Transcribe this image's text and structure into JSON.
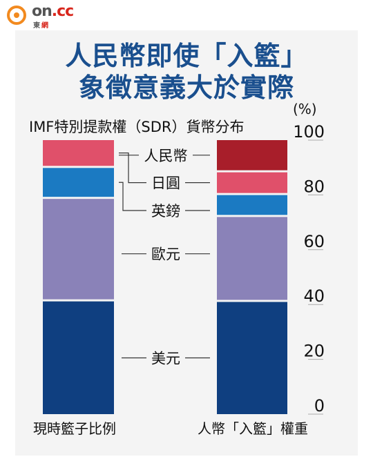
{
  "logo": {
    "brand_main": "on",
    "brand_suffix": ".cc",
    "brand_sub_1": "東",
    "brand_sub_2": "網"
  },
  "title_line1": "人民幣即使「入籃」",
  "title_line2": "象徵意義大於實際",
  "colors": {
    "title": "#1a4f8e",
    "美元": "#0f3f80",
    "歐元": "#8a82b8",
    "英鎊": "#1b7ac2",
    "日圓": "#e0506a",
    "人民幣": "#a81e2a"
  },
  "chart_data": {
    "type": "bar",
    "stacked": true,
    "title": "IMF特別提款權（SDR）貨幣分布",
    "unit": "(%)",
    "categories": [
      "現時籃子比例",
      "人幣「入籃」權重"
    ],
    "series": [
      {
        "name": "美元",
        "values": [
          41.9,
          41.7
        ]
      },
      {
        "name": "歐元",
        "values": [
          37.4,
          31.0
        ]
      },
      {
        "name": "英鎊",
        "values": [
          11.3,
          8.0
        ]
      },
      {
        "name": "日圓",
        "values": [
          9.4,
          8.3
        ]
      },
      {
        "name": "人民幣",
        "values": [
          0,
          11.0
        ]
      }
    ],
    "ylim": [
      0,
      100
    ],
    "yticks": [
      0,
      20,
      40,
      60,
      80,
      100
    ],
    "grid": false
  }
}
